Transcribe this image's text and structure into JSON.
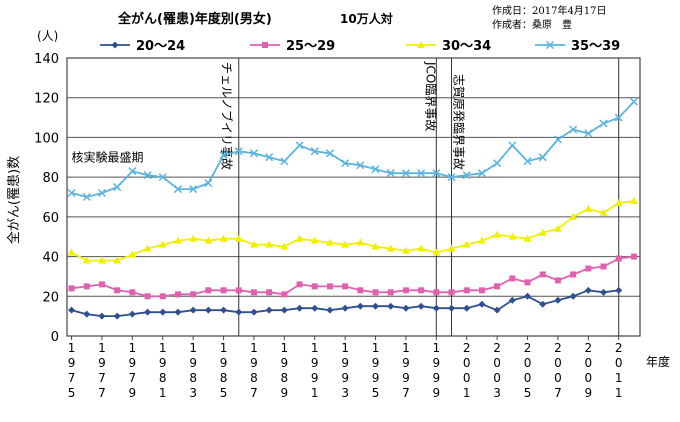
{
  "header": {
    "title": "全がん(罹患)年度別(男女)",
    "subtitle": "10万人対",
    "created_date": "作成日：2017年4月17日",
    "author": "作成者：桑原　豊"
  },
  "colors": {
    "s2024": "#2f4f8f",
    "s2529": "#e060b0",
    "s3034": "#f0f000",
    "s3539": "#5ab4e0"
  },
  "chart_data": {
    "type": "line",
    "ylabel": "全がん(罹患)数",
    "yunit": "(人)",
    "xlabel": "年度",
    "ylim": [
      0,
      140
    ],
    "yticks": [
      0,
      20,
      40,
      60,
      80,
      100,
      120,
      140
    ],
    "x": [
      1975,
      1976,
      1977,
      1978,
      1979,
      1980,
      1981,
      1982,
      1983,
      1984,
      1985,
      1986,
      1987,
      1988,
      1989,
      1990,
      1991,
      1992,
      1993,
      1994,
      1995,
      1996,
      1997,
      1998,
      1999,
      2000,
      2001,
      2002,
      2003,
      2004,
      2005,
      2006,
      2007,
      2008,
      2009,
      2010,
      2011,
      2012
    ],
    "xticks": [
      {
        "year": 1975,
        "label": "1975"
      },
      {
        "year": 1977,
        "label": "1977"
      },
      {
        "year": 1979,
        "label": "1979"
      },
      {
        "year": 1981,
        "label": "1981"
      },
      {
        "year": 1983,
        "label": "1983"
      },
      {
        "year": 1985,
        "label": "1985"
      },
      {
        "year": 1987,
        "label": "1987"
      },
      {
        "year": 1989,
        "label": "1989"
      },
      {
        "year": 1991,
        "label": "1991"
      },
      {
        "year": 1993,
        "label": "1993"
      },
      {
        "year": 1995,
        "label": "1995"
      },
      {
        "year": 1997,
        "label": "1997"
      },
      {
        "year": 1999,
        "label": "1999"
      },
      {
        "year": 2001,
        "label": "2001"
      },
      {
        "year": 2003,
        "label": "2003"
      },
      {
        "year": 2005,
        "label": "2005"
      },
      {
        "year": 2007,
        "label": "2007"
      },
      {
        "year": 2009,
        "label": "2009"
      },
      {
        "year": 2011,
        "label": "2011"
      }
    ],
    "series": [
      {
        "name": "20〜24",
        "marker": "diamond",
        "color": "#2f4f8f",
        "values": [
          13,
          11,
          10,
          10,
          11,
          12,
          12,
          12,
          13,
          13,
          13,
          12,
          12,
          13,
          13,
          14,
          14,
          13,
          14,
          15,
          15,
          15,
          14,
          15,
          14,
          14,
          14,
          16,
          13,
          18,
          20,
          16,
          18,
          20,
          23,
          22,
          23,
          null
        ]
      },
      {
        "name": "25〜29",
        "marker": "square",
        "color": "#e060b0",
        "values": [
          24,
          25,
          26,
          23,
          22,
          20,
          20,
          21,
          21,
          23,
          23,
          23,
          22,
          22,
          21,
          26,
          25,
          25,
          25,
          23,
          22,
          22,
          23,
          23,
          22,
          22,
          23,
          23,
          25,
          29,
          27,
          31,
          28,
          31,
          34,
          35,
          39,
          40
        ]
      },
      {
        "name": "30〜34",
        "marker": "triangle",
        "color": "#f0f000",
        "values": [
          42,
          38,
          38,
          38,
          41,
          44,
          46,
          48,
          49,
          48,
          49,
          49,
          46,
          46,
          45,
          49,
          48,
          47,
          46,
          47,
          45,
          44,
          43,
          44,
          42,
          44,
          46,
          48,
          51,
          50,
          49,
          52,
          54,
          60,
          64,
          62,
          67,
          68
        ]
      },
      {
        "name": "35〜39",
        "marker": "cross",
        "color": "#5ab4e0",
        "values": [
          72,
          70,
          72,
          75,
          83,
          81,
          80,
          74,
          74,
          77,
          91,
          93,
          92,
          90,
          88,
          96,
          93,
          92,
          87,
          86,
          84,
          82,
          82,
          82,
          82,
          80,
          81,
          82,
          87,
          96,
          88,
          90,
          99,
          104,
          102,
          107,
          110,
          118
        ]
      }
    ],
    "events": [
      {
        "year": 1986,
        "label": "チェルノブイリ事故"
      },
      {
        "year": 1999,
        "label": "JCO臨界事故"
      },
      {
        "year": 2000,
        "label": "志賀原発臨界事故"
      },
      {
        "year": 2011,
        "label": ""
      }
    ],
    "annotation": {
      "text": "核実験最盛期",
      "year": 1975,
      "value": 91
    }
  }
}
